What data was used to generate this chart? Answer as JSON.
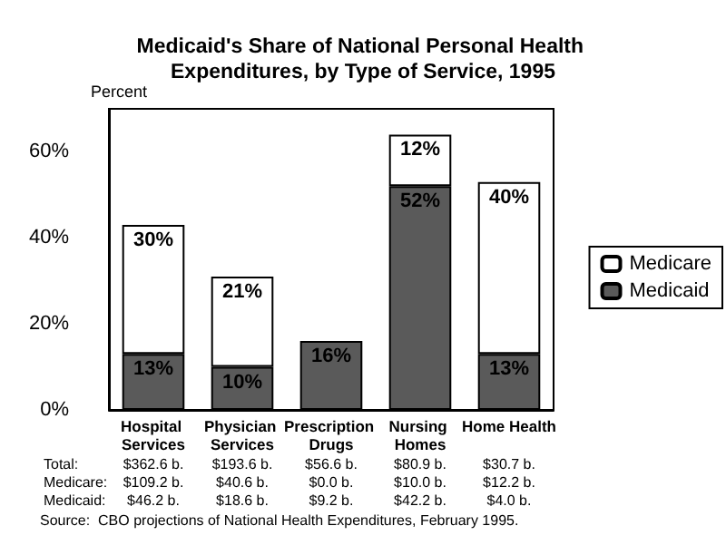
{
  "chart_data": {
    "type": "bar",
    "title": "Medicaid's Share of National Personal Health Expenditures, by Type of Service, 1995",
    "ylabel": "Percent",
    "categories": [
      "Hospital Services",
      "Physician Services",
      "Prescription Drugs",
      "Nursing Homes",
      "Home Health"
    ],
    "stacked": true,
    "series": [
      {
        "name": "Medicaid",
        "color": "#5a5a5a",
        "values": [
          13,
          10,
          16,
          52,
          13
        ],
        "value_labels": [
          "13%",
          "10%",
          "16%",
          "52%",
          "13%"
        ]
      },
      {
        "name": "Medicare",
        "color": "#ffffff",
        "values": [
          30,
          21,
          0,
          12,
          40
        ],
        "value_labels": [
          "30%",
          "21%",
          null,
          "12%",
          "40%"
        ]
      }
    ],
    "ylim": [
      0,
      70
    ],
    "yticks": [
      {
        "value": 0,
        "label": "0%"
      },
      {
        "value": 20,
        "label": "20%"
      },
      {
        "value": 40,
        "label": "40%"
      },
      {
        "value": 60,
        "label": "60%"
      }
    ],
    "grid": false,
    "legend": "right",
    "annotations": [
      "Total:",
      "$362.6 b.",
      "$193.6 b.",
      "$56.6 b.",
      "$80.9 b.",
      "$30.7 b.",
      "Medicare:",
      "$109.2 b.",
      "$40.6 b.",
      "$0.0 b.",
      "$10.0 b.",
      "$12.2 b.",
      "Medicaid:",
      "$46.2 b.",
      "$18.6 b.",
      "$9.2 b.",
      "$42.2 b.",
      "$4.0 b.",
      "Source:  CBO projections of National Health Expenditures, February 1995."
    ]
  }
}
